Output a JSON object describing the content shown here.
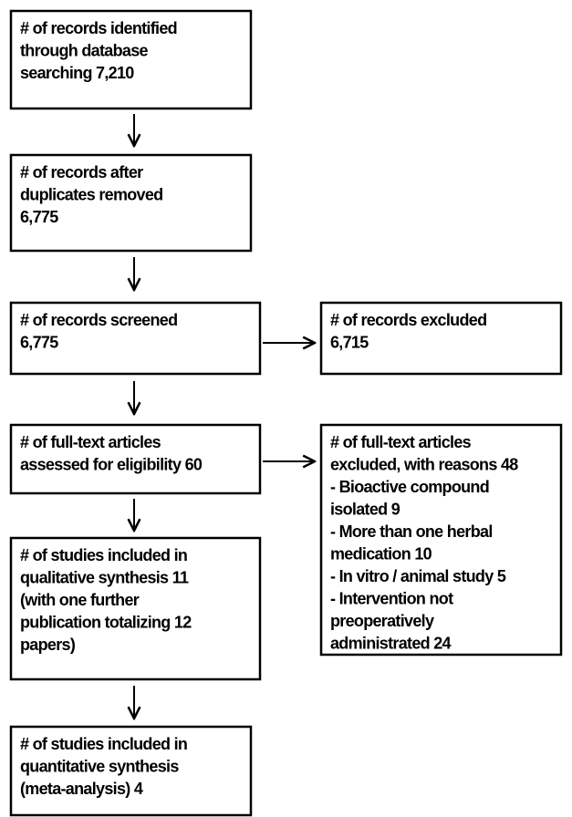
{
  "nodes": [
    {
      "lines": [
        "# of records identified",
        "through database",
        "searching 7,210"
      ]
    },
    {
      "lines": [
        "# of records after",
        "duplicates removed",
        "6,775"
      ]
    },
    {
      "lines": [
        "# of records screened",
        "6,775"
      ]
    },
    {
      "lines": [
        "# of records excluded",
        "6,715"
      ]
    },
    {
      "lines": [
        "# of full-text articles",
        "assessed for eligibility 60"
      ]
    },
    {
      "lines": [
        "# of full-text articles",
        "excluded, with reasons 48",
        "- Bioactive compound",
        "isolated 9",
        "- More than one herbal",
        "medication 10",
        "- In vitro / animal study 5",
        "- Intervention not",
        "preoperatively",
        "administrated 24"
      ]
    },
    {
      "lines": [
        "# of studies included in",
        "qualitative synthesis 11",
        "(with one further",
        "publication totalizing 12",
        "papers)"
      ]
    },
    {
      "lines": [
        "# of studies included in",
        "quantitative synthesis",
        "(meta-analysis) 4"
      ]
    }
  ]
}
